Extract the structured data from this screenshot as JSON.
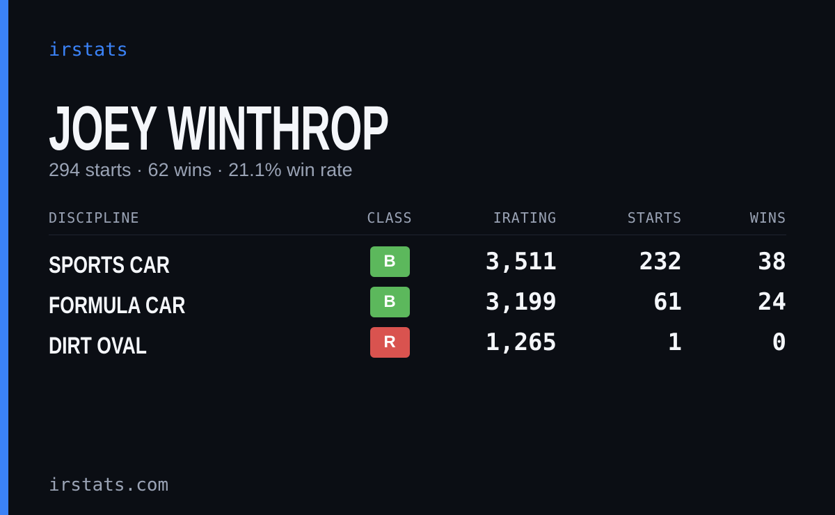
{
  "brand": "irstats",
  "name": "JOEY WINTHROP",
  "summary": "294 starts · 62 wins · 21.1% win rate",
  "table": {
    "headers": [
      "DISCIPLINE",
      "CLASS",
      "IRATING",
      "STARTS",
      "WINS"
    ],
    "rows": [
      {
        "discipline": "SPORTS CAR",
        "class": "B",
        "class_color": "#5cb85c",
        "irating": "3,511",
        "starts": "232",
        "wins": "38"
      },
      {
        "discipline": "FORMULA CAR",
        "class": "B",
        "class_color": "#5cb85c",
        "irating": "3,199",
        "starts": "61",
        "wins": "24"
      },
      {
        "discipline": "DIRT OVAL",
        "class": "R",
        "class_color": "#d9534f",
        "irating": "1,265",
        "starts": "1",
        "wins": "0"
      }
    ]
  },
  "footer": "irstats.com"
}
